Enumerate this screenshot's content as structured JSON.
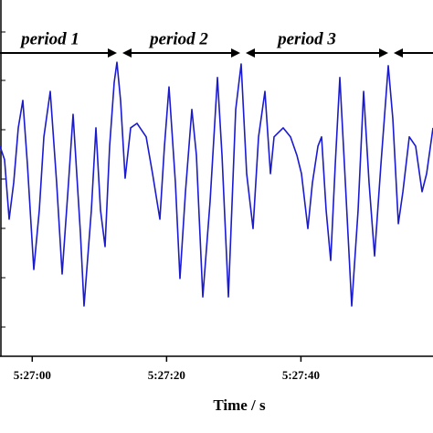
{
  "chart_data": {
    "type": "line",
    "x_label": "Time / s",
    "annotations": [
      "period 1",
      "period 2",
      "period 3"
    ],
    "color": "#1a1ad0",
    "x": [
      19615.2,
      19615.88,
      19616.56,
      19617.24,
      19617.92,
      19618.6,
      19619.28,
      19620.23,
      19621.05,
      19621.73,
      19622.68,
      19623.63,
      19624.45,
      19625.4,
      19626.08,
      19627.17,
      19627.71,
      19628.8,
      19629.48,
      19630.16,
      19630.84,
      19631.52,
      19632.2,
      19632.61,
      19633.15,
      19633.83,
      19634.65,
      19635.6,
      19636.96,
      19637.91,
      19639.0,
      19639.68,
      19640.36,
      19641.31,
      19641.99,
      19642.81,
      19643.76,
      19644.44,
      19645.39,
      19646.48,
      19647.57,
      19648.25,
      19649.2,
      19650.29,
      19651.1,
      19651.92,
      19652.87,
      19653.69,
      19654.64,
      19655.46,
      19656.0,
      19657.36,
      19658.45,
      19659.4,
      19660.08,
      19661.03,
      19661.71,
      19662.53,
      19663.07,
      19663.75,
      19664.43,
      19665.11,
      19665.79,
      19666.47,
      19667.56,
      19668.51,
      19669.33,
      19670.14,
      19670.96,
      19671.91,
      19673.0,
      19673.68,
      19674.5,
      19675.18,
      19676.13,
      19677.08,
      19678.03,
      19678.71,
      19679.66
    ],
    "values": [
      6.05,
      5.66,
      3.95,
      5,
      6.58,
      7.37,
      5.53,
      2.5,
      4.21,
      6.32,
      7.63,
      5,
      2.37,
      5,
      6.97,
      3.55,
      1.45,
      4.21,
      6.58,
      4.21,
      3.16,
      6.05,
      7.89,
      8.47,
      7.37,
      5.13,
      6.58,
      6.71,
      6.32,
      5.26,
      3.95,
      6.05,
      7.76,
      5,
      2.24,
      4.74,
      7.11,
      5.79,
      1.71,
      4.47,
      8.03,
      5.79,
      1.71,
      7.11,
      8.42,
      5.26,
      3.68,
      6.32,
      7.63,
      5.26,
      6.32,
      6.58,
      6.32,
      5.79,
      5.26,
      3.68,
      5,
      6.05,
      6.32,
      4.21,
      2.76,
      5.53,
      8.03,
      5.53,
      1.45,
      4.21,
      7.63,
      5,
      2.89,
      5.53,
      8.37,
      6.84,
      3.82,
      4.74,
      6.32,
      6.05,
      4.74,
      5.26,
      6.58
    ],
    "xlim": [
      19615.2,
      19679.66
    ],
    "xticks": [
      {
        "value": 19620,
        "label": "5:27:00"
      },
      {
        "value": 19640,
        "label": "5:27:20"
      },
      {
        "value": 19660,
        "label": "5:27:40"
      }
    ],
    "ylim": [
      0,
      10
    ]
  }
}
